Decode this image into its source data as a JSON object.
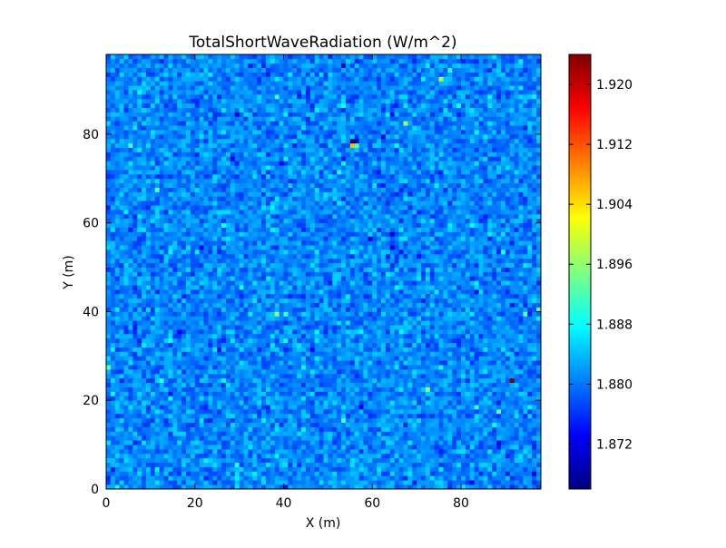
{
  "chart_data": {
    "type": "heatmap",
    "title": "TotalShortWaveRadiation (W/m^2)",
    "xlabel": "X (m)",
    "ylabel": "Y (m)",
    "xlim": [
      0,
      98
    ],
    "ylim": [
      0,
      98
    ],
    "grid": false,
    "colormap": "jet",
    "grid_size": [
      98,
      98
    ],
    "xticks": [
      0,
      20,
      40,
      60,
      80
    ],
    "yticks": [
      0,
      20,
      40,
      60,
      80
    ],
    "colorbar": {
      "range": [
        1.866,
        1.924
      ],
      "ticks": [
        "1.872",
        "1.880",
        "1.888",
        "1.896",
        "1.904",
        "1.912",
        "1.920"
      ],
      "tick_values": [
        1.872,
        1.88,
        1.888,
        1.896,
        1.904,
        1.912,
        1.92
      ],
      "placement": "right"
    },
    "value_summary": {
      "typical_mean": 1.881,
      "typical_spread": 0.0025,
      "min_visible": 1.866,
      "max_visible": 1.924
    },
    "notable_cells": [
      {
        "x": 91,
        "y": 24,
        "value": 1.924
      },
      {
        "x": 55,
        "y": 77,
        "value": 1.906
      },
      {
        "x": 55,
        "y": 78,
        "value": 1.866
      },
      {
        "x": 56,
        "y": 78,
        "value": 1.868
      },
      {
        "x": 56,
        "y": 77,
        "value": 1.892
      },
      {
        "x": 72,
        "y": 22,
        "value": 1.896
      },
      {
        "x": 75,
        "y": 92,
        "value": 1.898
      },
      {
        "x": 67,
        "y": 82,
        "value": 1.897
      },
      {
        "x": 38,
        "y": 39,
        "value": 1.896
      },
      {
        "x": 40,
        "y": 39,
        "value": 1.892
      },
      {
        "x": 5,
        "y": 77,
        "value": 1.892
      },
      {
        "x": 11,
        "y": 67,
        "value": 1.893
      },
      {
        "x": 0,
        "y": 27,
        "value": 1.894
      },
      {
        "x": 88,
        "y": 17,
        "value": 1.893
      },
      {
        "x": 94,
        "y": 39,
        "value": 1.893
      },
      {
        "x": 97,
        "y": 40,
        "value": 1.892
      },
      {
        "x": 53,
        "y": 15,
        "value": 1.892
      },
      {
        "x": 12,
        "y": 24,
        "value": 1.891
      },
      {
        "x": 38,
        "y": 88,
        "value": 1.891
      },
      {
        "x": 77,
        "y": 94,
        "value": 1.89
      },
      {
        "x": 29,
        "y": 5,
        "value": 1.89
      },
      {
        "x": 83,
        "y": 18,
        "value": 1.891
      },
      {
        "x": 52,
        "y": 71,
        "value": 1.889
      },
      {
        "x": 89,
        "y": 53,
        "value": 1.889
      },
      {
        "x": 75,
        "y": 27,
        "value": 1.889
      },
      {
        "x": 2,
        "y": 0,
        "value": 1.889
      },
      {
        "x": 26,
        "y": 59,
        "value": 1.889
      },
      {
        "x": 30,
        "y": 45,
        "value": 1.889
      }
    ],
    "dark_cells": [
      {
        "x": 53,
        "y": 95,
        "value": 1.87
      },
      {
        "x": 29,
        "y": 84,
        "value": 1.87
      },
      {
        "x": 59,
        "y": 56,
        "value": 1.871
      },
      {
        "x": 64,
        "y": 54,
        "value": 1.871
      },
      {
        "x": 64,
        "y": 57,
        "value": 1.871
      },
      {
        "x": 21,
        "y": 54,
        "value": 1.872
      },
      {
        "x": 57,
        "y": 18,
        "value": 1.872
      },
      {
        "x": 96,
        "y": 3,
        "value": 1.872
      },
      {
        "x": 83,
        "y": 44,
        "value": 1.872
      },
      {
        "x": 28,
        "y": 74,
        "value": 1.872
      },
      {
        "x": 82,
        "y": 1,
        "value": 1.872
      },
      {
        "x": 62,
        "y": 79,
        "value": 1.872
      },
      {
        "x": 16,
        "y": 35,
        "value": 1.873
      },
      {
        "x": 39,
        "y": 73,
        "value": 1.873
      },
      {
        "x": 46,
        "y": 31,
        "value": 1.873
      },
      {
        "x": 88,
        "y": 10,
        "value": 1.873
      }
    ]
  }
}
